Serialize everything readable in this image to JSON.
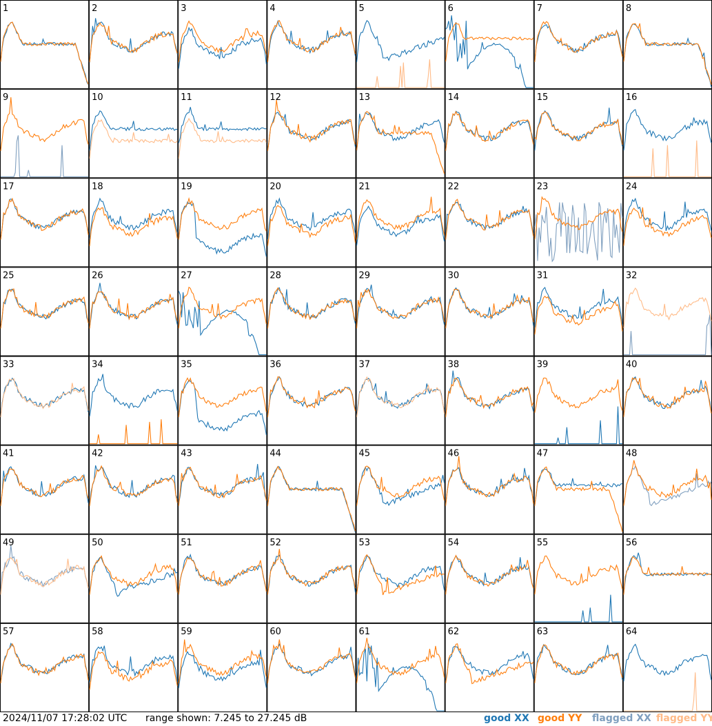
{
  "footer": {
    "timestamp": "2024/11/07 17:28:02 UTC",
    "range_text": "range shown: 7.245 to 27.245 dB"
  },
  "legend": {
    "good_xx": "good XX",
    "good_yy": "good YY",
    "flagged_xx": "flagged XX",
    "flagged_yy": "flagged YY"
  },
  "colors": {
    "good_xx": "#1f77b4",
    "good_yy": "#ff7f0e",
    "flagged_xx": "#7f9fbf",
    "flagged_yy": "#ffbb88"
  },
  "chart_data": {
    "type": "line",
    "grid": "8x8",
    "y_range_db": [
      7.245,
      27.245
    ],
    "tiles": [
      {
        "label": "1",
        "xx": "good",
        "yy": "good",
        "shape_xx": "dropoff",
        "shape_yy": "dropoff"
      },
      {
        "label": "2",
        "xx": "good",
        "yy": "good",
        "shape_xx": "normal",
        "shape_yy": "normal"
      },
      {
        "label": "3",
        "xx": "good",
        "yy": "good",
        "shape_xx": "normal_low",
        "shape_yy": "normal"
      },
      {
        "label": "4",
        "xx": "good",
        "yy": "good",
        "shape_xx": "normal",
        "shape_yy": "normal"
      },
      {
        "label": "5",
        "xx": "good",
        "yy": "flagged",
        "shape_xx": "dip",
        "shape_yy": "spikes_low"
      },
      {
        "label": "6",
        "xx": "good",
        "yy": "good",
        "shape_xx": "wave_drop",
        "shape_yy": "flat_high"
      },
      {
        "label": "7",
        "xx": "good",
        "yy": "good",
        "shape_xx": "normal",
        "shape_yy": "normal"
      },
      {
        "label": "8",
        "xx": "good",
        "yy": "good",
        "shape_xx": "dropoff",
        "shape_yy": "dropoff"
      },
      {
        "label": "9",
        "xx": "flagged",
        "yy": "good",
        "shape_xx": "spikes_low",
        "shape_yy": "normal"
      },
      {
        "label": "10",
        "xx": "good",
        "yy": "flagged",
        "shape_xx": "flat_mid",
        "shape_yy": "flat_lower"
      },
      {
        "label": "11",
        "xx": "good",
        "yy": "flagged",
        "shape_xx": "flat_mid",
        "shape_yy": "flat_lower"
      },
      {
        "label": "12",
        "xx": "good",
        "yy": "good",
        "shape_xx": "normal",
        "shape_yy": "normal"
      },
      {
        "label": "13",
        "xx": "good",
        "yy": "good",
        "shape_xx": "normal",
        "shape_yy": "dropoff"
      },
      {
        "label": "14",
        "xx": "good",
        "yy": "good",
        "shape_xx": "normal",
        "shape_yy": "normal"
      },
      {
        "label": "15",
        "xx": "good",
        "yy": "good",
        "shape_xx": "normal",
        "shape_yy": "normal"
      },
      {
        "label": "16",
        "xx": "good",
        "yy": "flagged",
        "shape_xx": "normal",
        "shape_yy": "spikes_low"
      },
      {
        "label": "17",
        "xx": "good",
        "yy": "good",
        "shape_xx": "normal",
        "shape_yy": "normal"
      },
      {
        "label": "18",
        "xx": "good",
        "yy": "good",
        "shape_xx": "normal",
        "shape_yy": "normal_low"
      },
      {
        "label": "19",
        "xx": "good",
        "yy": "good",
        "shape_xx": "low_sep",
        "shape_yy": "normal"
      },
      {
        "label": "20",
        "xx": "good",
        "yy": "good",
        "shape_xx": "normal",
        "shape_yy": "normal_low"
      },
      {
        "label": "21",
        "xx": "good",
        "yy": "good",
        "shape_xx": "normal_low",
        "shape_yy": "normal"
      },
      {
        "label": "22",
        "xx": "good",
        "yy": "good",
        "shape_xx": "normal",
        "shape_yy": "normal"
      },
      {
        "label": "23",
        "xx": "flagged",
        "yy": "good",
        "shape_xx": "noise",
        "shape_yy": "normal"
      },
      {
        "label": "24",
        "xx": "good",
        "yy": "good",
        "shape_xx": "normal",
        "shape_yy": "normal_low"
      },
      {
        "label": "25",
        "xx": "good",
        "yy": "good",
        "shape_xx": "normal",
        "shape_yy": "normal"
      },
      {
        "label": "26",
        "xx": "good",
        "yy": "good",
        "shape_xx": "normal",
        "shape_yy": "normal"
      },
      {
        "label": "27",
        "xx": "good",
        "yy": "good",
        "shape_xx": "wave_drop",
        "shape_yy": "normal"
      },
      {
        "label": "28",
        "xx": "good",
        "yy": "good",
        "shape_xx": "normal",
        "shape_yy": "normal"
      },
      {
        "label": "29",
        "xx": "good",
        "yy": "good",
        "shape_xx": "normal",
        "shape_yy": "normal"
      },
      {
        "label": "30",
        "xx": "good",
        "yy": "good",
        "shape_xx": "normal",
        "shape_yy": "normal"
      },
      {
        "label": "31",
        "xx": "good",
        "yy": "good",
        "shape_xx": "normal",
        "shape_yy": "normal_low"
      },
      {
        "label": "32",
        "xx": "flagged",
        "yy": "flagged",
        "shape_xx": "spikes_low",
        "shape_yy": "normal"
      },
      {
        "label": "33",
        "xx": "good",
        "yy": "flagged",
        "shape_xx": "normal",
        "shape_yy": "normal"
      },
      {
        "label": "34",
        "xx": "good",
        "yy": "good",
        "shape_xx": "normal",
        "shape_yy": "spikes_low"
      },
      {
        "label": "35",
        "xx": "good",
        "yy": "good",
        "shape_xx": "low_sep",
        "shape_yy": "normal"
      },
      {
        "label": "36",
        "xx": "good",
        "yy": "good",
        "shape_xx": "normal",
        "shape_yy": "normal"
      },
      {
        "label": "37",
        "xx": "good",
        "yy": "flagged",
        "shape_xx": "normal",
        "shape_yy": "normal"
      },
      {
        "label": "38",
        "xx": "good",
        "yy": "good",
        "shape_xx": "normal",
        "shape_yy": "normal"
      },
      {
        "label": "39",
        "xx": "good",
        "yy": "good",
        "shape_xx": "spikes_low",
        "shape_yy": "normal"
      },
      {
        "label": "40",
        "xx": "good",
        "yy": "good",
        "shape_xx": "normal",
        "shape_yy": "normal"
      },
      {
        "label": "41",
        "xx": "good",
        "yy": "good",
        "shape_xx": "normal",
        "shape_yy": "normal"
      },
      {
        "label": "42",
        "xx": "good",
        "yy": "good",
        "shape_xx": "normal",
        "shape_yy": "normal"
      },
      {
        "label": "43",
        "xx": "good",
        "yy": "good",
        "shape_xx": "normal",
        "shape_yy": "normal"
      },
      {
        "label": "44",
        "xx": "good",
        "yy": "good",
        "shape_xx": "dropoff",
        "shape_yy": "dropoff"
      },
      {
        "label": "45",
        "xx": "good",
        "yy": "good",
        "shape_xx": "dip",
        "shape_yy": "normal"
      },
      {
        "label": "46",
        "xx": "good",
        "yy": "good",
        "shape_xx": "normal",
        "shape_yy": "normal"
      },
      {
        "label": "47",
        "xx": "good",
        "yy": "good",
        "shape_xx": "flat_mid",
        "shape_yy": "dropoff"
      },
      {
        "label": "48",
        "xx": "flagged",
        "yy": "good",
        "shape_xx": "dip",
        "shape_yy": "normal"
      },
      {
        "label": "49",
        "xx": "flagged",
        "yy": "flagged",
        "shape_xx": "normal",
        "shape_yy": "normal"
      },
      {
        "label": "50",
        "xx": "good",
        "yy": "good",
        "shape_xx": "dip",
        "shape_yy": "normal"
      },
      {
        "label": "51",
        "xx": "good",
        "yy": "good",
        "shape_xx": "normal",
        "shape_yy": "normal"
      },
      {
        "label": "52",
        "xx": "good",
        "yy": "good",
        "shape_xx": "normal",
        "shape_yy": "normal"
      },
      {
        "label": "53",
        "xx": "good",
        "yy": "good",
        "shape_xx": "normal",
        "shape_yy": "dip"
      },
      {
        "label": "54",
        "xx": "good",
        "yy": "good",
        "shape_xx": "normal",
        "shape_yy": "normal"
      },
      {
        "label": "55",
        "xx": "good",
        "yy": "good",
        "shape_xx": "spikes_low",
        "shape_yy": "normal"
      },
      {
        "label": "56",
        "xx": "good",
        "yy": "good",
        "shape_xx": "flat_mid",
        "shape_yy": "flat_mid"
      },
      {
        "label": "57",
        "xx": "good",
        "yy": "good",
        "shape_xx": "normal",
        "shape_yy": "normal"
      },
      {
        "label": "58",
        "xx": "good",
        "yy": "good",
        "shape_xx": "normal",
        "shape_yy": "normal_low"
      },
      {
        "label": "59",
        "xx": "good",
        "yy": "good",
        "shape_xx": "normal_low",
        "shape_yy": "normal"
      },
      {
        "label": "60",
        "xx": "good",
        "yy": "good",
        "shape_xx": "normal",
        "shape_yy": "normal"
      },
      {
        "label": "61",
        "xx": "good",
        "yy": "good",
        "shape_xx": "wave_drop",
        "shape_yy": "normal"
      },
      {
        "label": "62",
        "xx": "good",
        "yy": "good",
        "shape_xx": "normal",
        "shape_yy": "dip"
      },
      {
        "label": "63",
        "xx": "good",
        "yy": "good",
        "shape_xx": "normal",
        "shape_yy": "normal"
      },
      {
        "label": "64",
        "xx": "good",
        "yy": "flagged",
        "shape_xx": "normal",
        "shape_yy": "spikes_low"
      }
    ]
  }
}
